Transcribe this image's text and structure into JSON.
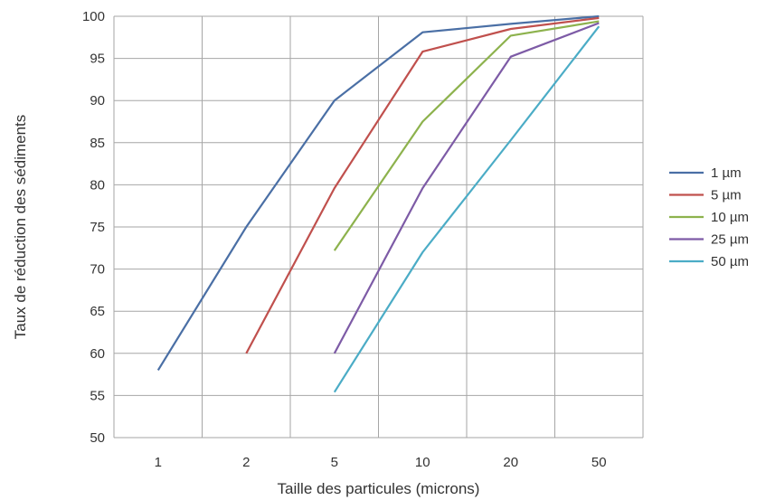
{
  "chart_data": {
    "type": "line",
    "title": "",
    "xlabel": "Taille des particules (microns)",
    "ylabel": "Taux de réduction des sédiments",
    "categories": [
      "1",
      "2",
      "5",
      "10",
      "20",
      "50"
    ],
    "ylim": [
      50,
      100
    ],
    "yticks": [
      50,
      55,
      60,
      65,
      70,
      75,
      80,
      85,
      90,
      95,
      100
    ],
    "grid": true,
    "legend_position": "right",
    "series": [
      {
        "name": "1 µm",
        "color": "#4a6fa5",
        "values": [
          58,
          75,
          90,
          98.1,
          99.1,
          100
        ]
      },
      {
        "name": "5 µm",
        "color": "#c0504d",
        "values": [
          null,
          60,
          79.6,
          95.8,
          98.5,
          99.8
        ]
      },
      {
        "name": "10 µm",
        "color": "#8db24d",
        "values": [
          null,
          null,
          72.2,
          87.5,
          97.7,
          99.4
        ]
      },
      {
        "name": "25 µm",
        "color": "#7d5ba6",
        "values": [
          null,
          null,
          60,
          79.6,
          95.2,
          99.2
        ]
      },
      {
        "name": "50 µm",
        "color": "#4bacc6",
        "values": [
          null,
          null,
          55.4,
          72,
          85.3,
          98.8
        ]
      }
    ]
  }
}
